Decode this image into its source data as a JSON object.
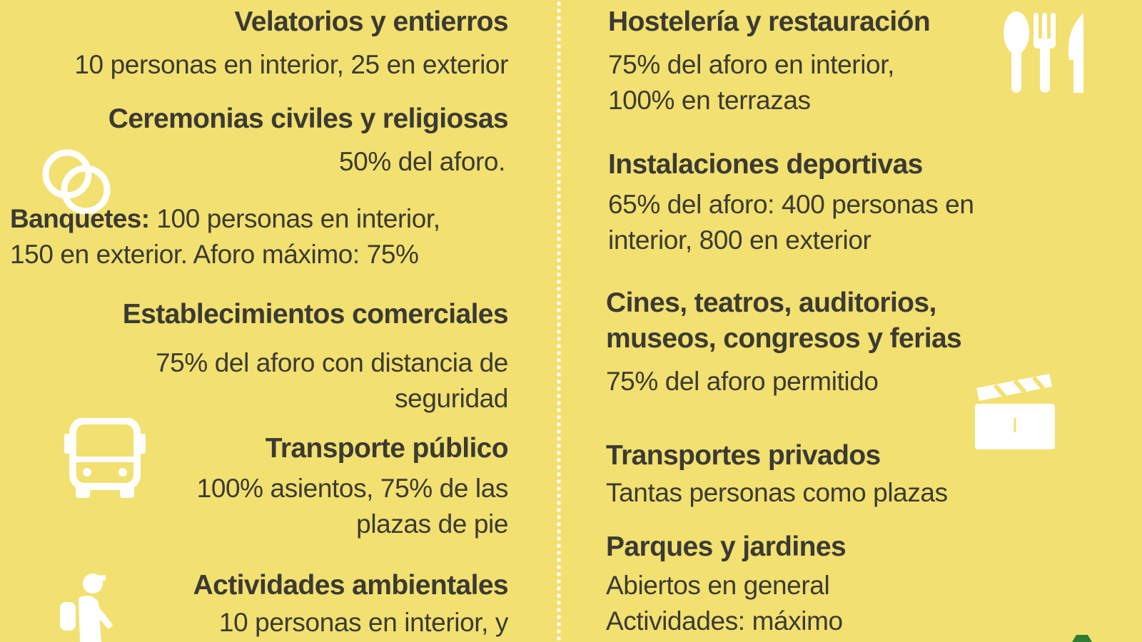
{
  "colors": {
    "background": "#f2e070",
    "text": "#3b3a33",
    "icon": "#ffffff",
    "divider": "#ffffff",
    "logo_green": "#2e7d32"
  },
  "left": [
    {
      "title": "Velatorios y entierros",
      "text": "10 personas en interior, 25 en exterior"
    },
    {
      "title": "Ceremonias civiles y religiosas",
      "text": "50% del aforo.",
      "icon": "wedding-rings-icon"
    },
    {
      "title": "Banquetes:",
      "text_line1": " 100 personas en interior,",
      "text_line2": "150 en exterior. Aforo máximo: 75%"
    },
    {
      "title": "Establecimientos comerciales",
      "text_line1": "75% del aforo con distancia de",
      "text_line2": "seguridad"
    },
    {
      "title": "Transporte público",
      "text_line1": "100% asientos, 75% de las",
      "text_line2": "plazas de pie",
      "icon": "bus-icon"
    },
    {
      "title": "Actividades ambientales",
      "text": "10 personas en interior, y",
      "icon": "hiker-icon"
    }
  ],
  "right": [
    {
      "title": "Hostelería y restauración",
      "text_line1": "75% del aforo en interior,",
      "text_line2": "100% en terrazas",
      "icon": "cutlery-icon"
    },
    {
      "title": "Instalaciones deportivas",
      "text_line1": "65% del aforo: 400 personas en",
      "text_line2": "interior, 800 en exterior"
    },
    {
      "title_line1": "Cines, teatros, auditorios,",
      "title_line2": "museos, congresos y ferias",
      "text": "75% del aforo permitido",
      "icon": "clapperboard-icon"
    },
    {
      "title": "Transportes privados",
      "text": "Tantas personas como plazas"
    },
    {
      "title": "Parques y jardines",
      "text_line1": "Abiertos en general",
      "text_line2": "Actividades: máximo"
    }
  ]
}
